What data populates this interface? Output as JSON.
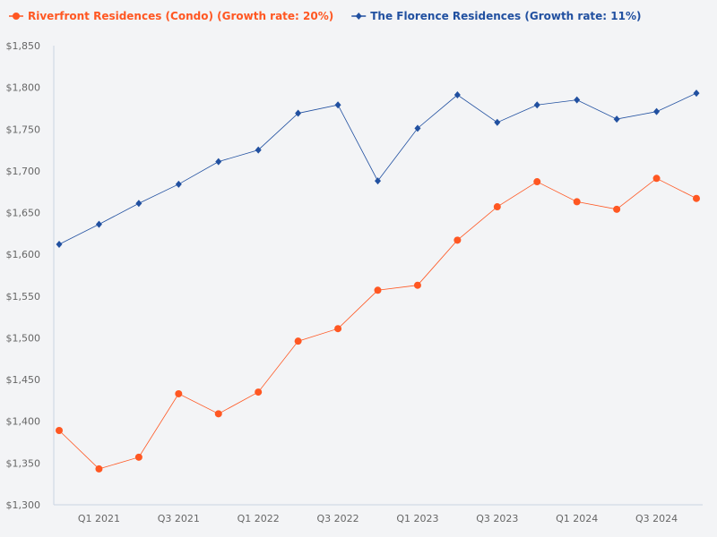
{
  "chart_data": {
    "type": "line",
    "title": "",
    "xlabel": "",
    "ylabel": "",
    "ylim": [
      1300,
      1850
    ],
    "y_ticks": [
      "$1,300",
      "$1,350",
      "$1,400",
      "$1,450",
      "$1,500",
      "$1,550",
      "$1,600",
      "$1,650",
      "$1,700",
      "$1,750",
      "$1,800",
      "$1,850"
    ],
    "y_tick_values": [
      1300,
      1350,
      1400,
      1450,
      1500,
      1550,
      1600,
      1650,
      1700,
      1750,
      1800,
      1850
    ],
    "x": [
      "Q4 2020",
      "Q1 2021",
      "Q2 2021",
      "Q3 2021",
      "Q4 2021",
      "Q1 2022",
      "Q2 2022",
      "Q3 2022",
      "Q4 2022",
      "Q1 2023",
      "Q2 2023",
      "Q3 2023",
      "Q4 2023",
      "Q1 2024",
      "Q2 2024",
      "Q3 2024",
      "Q4 2024"
    ],
    "x_tick_labels": [
      "Q1 2021",
      "Q3 2021",
      "Q1 2022",
      "Q3 2022",
      "Q1 2023",
      "Q3 2023",
      "Q1 2024",
      "Q3 2024"
    ],
    "grid": false,
    "legend_placement": "top-left",
    "series": [
      {
        "name": "Riverfront Residences (Condo) (Growth rate: 20%)",
        "color": "#ff5722",
        "marker": "circle",
        "values": [
          1389,
          1343,
          1357,
          1433,
          1409,
          1435,
          1496,
          1511,
          1557,
          1563,
          1617,
          1657,
          1687,
          1663,
          1654,
          1691,
          1667
        ]
      },
      {
        "name": "The Florence Residences (Growth rate: 11%)",
        "color": "#2150a0",
        "marker": "diamond",
        "values": [
          1612,
          1636,
          1661,
          1684,
          1711,
          1725,
          1769,
          1779,
          1688,
          1751,
          1791,
          1758,
          1779,
          1785,
          1762,
          1771,
          1793
        ]
      }
    ]
  }
}
